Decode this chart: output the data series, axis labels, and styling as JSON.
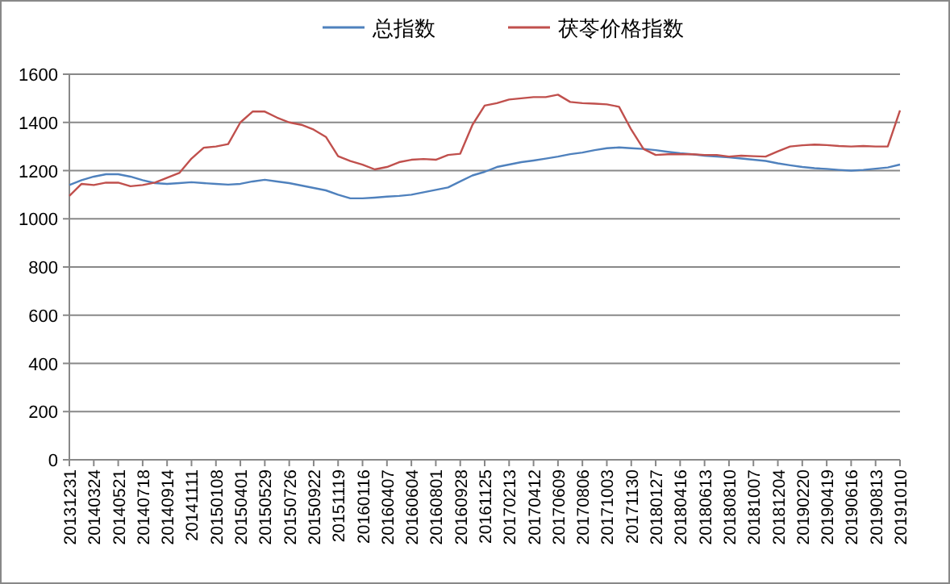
{
  "chart_data": {
    "type": "line",
    "categories": [
      "20131231",
      null,
      "20140324",
      null,
      "20140521",
      null,
      "20140718",
      null,
      "20140914",
      null,
      "20141111",
      null,
      "20150108",
      null,
      "20150401",
      null,
      "20150529",
      null,
      "20150726",
      null,
      "20150922",
      null,
      "20151119",
      null,
      "20160116",
      null,
      "20160407",
      null,
      "20160604",
      null,
      "20160801",
      null,
      "20160928",
      null,
      "20161125",
      null,
      "20170213",
      null,
      "20170412",
      null,
      "20170609",
      null,
      "20170806",
      null,
      "20171003",
      null,
      "20171130",
      null,
      "20180127",
      null,
      "20180416",
      null,
      "20180613",
      null,
      "20180810",
      null,
      "20181007",
      null,
      "20181204",
      null,
      "20190220",
      null,
      "20190419",
      null,
      "20190616",
      null,
      "20190813",
      null,
      "20191010"
    ],
    "series": [
      {
        "name": "总指数",
        "color": "#4f81bd",
        "values": [
          1140,
          1160,
          1175,
          1185,
          1185,
          1175,
          1160,
          1148,
          1145,
          1148,
          1152,
          1148,
          1145,
          1142,
          1145,
          1155,
          1162,
          1155,
          1148,
          1138,
          1128,
          1118,
          1100,
          1085,
          1085,
          1088,
          1092,
          1095,
          1100,
          1110,
          1120,
          1130,
          1155,
          1180,
          1195,
          1215,
          1225,
          1235,
          1242,
          1250,
          1258,
          1268,
          1275,
          1285,
          1293,
          1296,
          1293,
          1290,
          1285,
          1278,
          1272,
          1268,
          1262,
          1258,
          1255,
          1250,
          1245,
          1240,
          1230,
          1222,
          1215,
          1210,
          1207,
          1203,
          1200,
          1203,
          1208,
          1213,
          1225
        ]
      },
      {
        "name": "茯苓价格指数",
        "color": "#c0504d",
        "values": [
          1095,
          1145,
          1140,
          1150,
          1150,
          1135,
          1140,
          1150,
          1170,
          1190,
          1250,
          1295,
          1300,
          1310,
          1400,
          1445,
          1445,
          1420,
          1400,
          1390,
          1370,
          1340,
          1260,
          1240,
          1225,
          1205,
          1215,
          1235,
          1245,
          1248,
          1245,
          1265,
          1270,
          1390,
          1470,
          1480,
          1495,
          1500,
          1505,
          1505,
          1515,
          1485,
          1480,
          1478,
          1475,
          1465,
          1370,
          1290,
          1265,
          1268,
          1268,
          1268,
          1265,
          1265,
          1258,
          1262,
          1260,
          1258,
          1280,
          1300,
          1305,
          1308,
          1306,
          1302,
          1300,
          1302,
          1300,
          1300,
          1450
        ]
      }
    ],
    "ylim": [
      0,
      1600
    ],
    "yticks": [
      0,
      200,
      400,
      600,
      800,
      1000,
      1200,
      1400,
      1600
    ],
    "grid": "y",
    "legend": "top"
  }
}
